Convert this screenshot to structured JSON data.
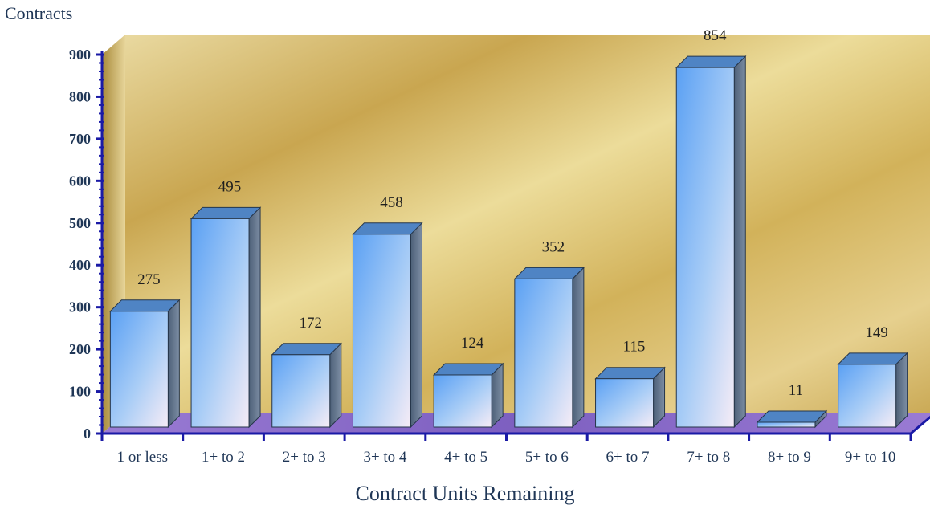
{
  "chart_data": {
    "type": "bar",
    "title": "",
    "ylabel": "Contracts",
    "xlabel": "Contract Units Remaining",
    "ylim": [
      0,
      900
    ],
    "yticks": [
      0,
      100,
      200,
      300,
      400,
      500,
      600,
      700,
      800,
      900
    ],
    "categories": [
      "1 or less",
      "1+ to 2",
      "2+ to 3",
      "3+ to 4",
      "4+ to 5",
      "5+ to 6",
      "6+ to 7",
      "7+ to 8",
      "8+ to 9",
      "9+ to 10"
    ],
    "values": [
      275,
      495,
      172,
      458,
      124,
      352,
      115,
      854,
      11,
      149
    ],
    "data_labels": [
      "275",
      "495",
      "172",
      "458",
      "124",
      "352",
      "115",
      "854",
      "11",
      "149"
    ],
    "grid": false,
    "legend": "none",
    "style": "3d-bars",
    "colors": {
      "axis": "#1a1aa6",
      "text": "#1f3656",
      "bar_light": "#f3e8f6",
      "bar_dark": "#5aa0f4",
      "bar_top": "#4f84c4",
      "bar_side": "#566a82",
      "floor": "#8a68c8",
      "wall_gold": "#d7b85e"
    }
  }
}
